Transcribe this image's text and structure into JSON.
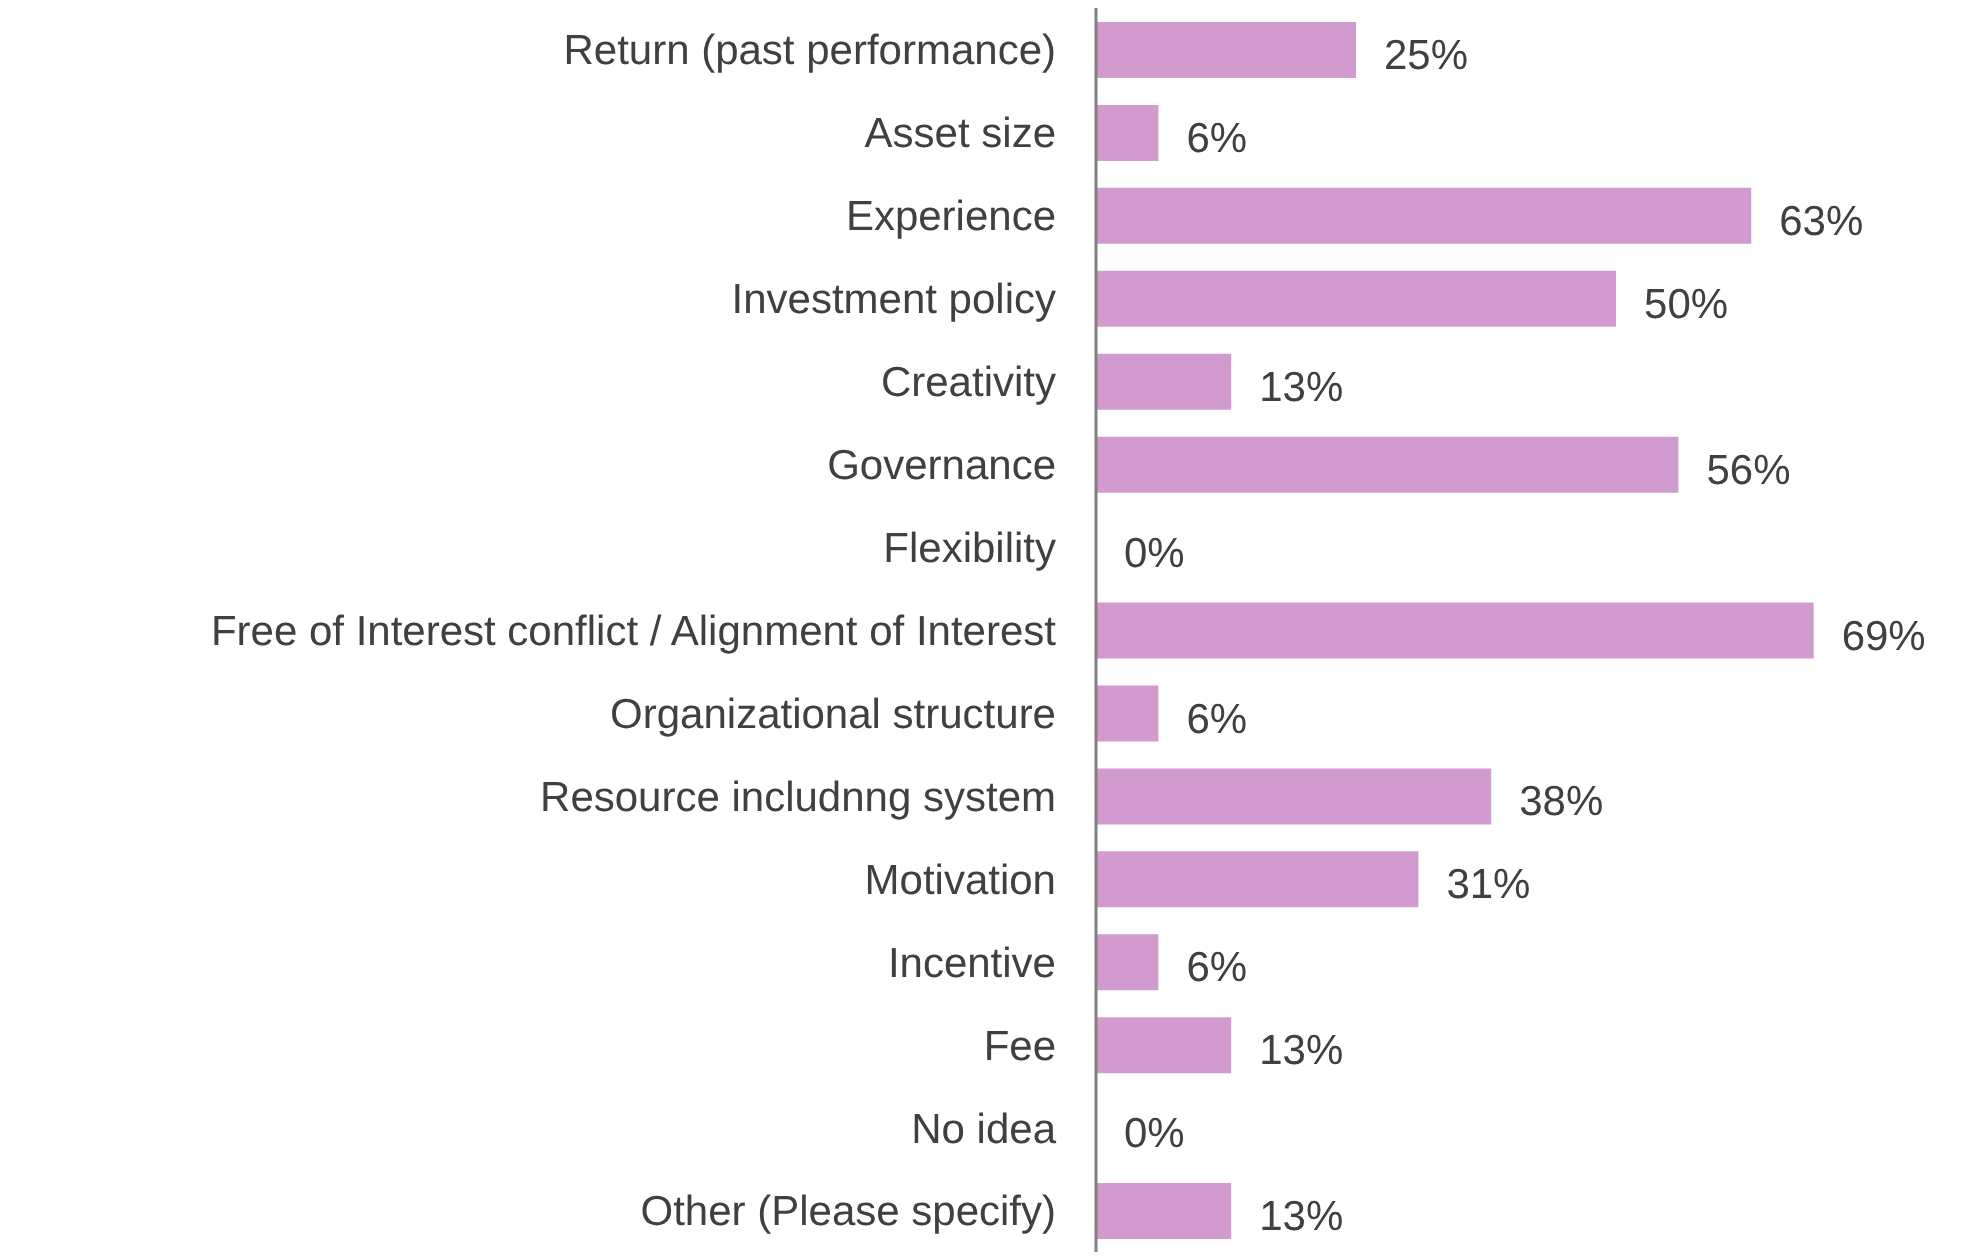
{
  "chart_data": {
    "type": "bar",
    "orientation": "horizontal",
    "categories": [
      "Return (past performance)",
      "Asset size",
      "Experience",
      "Investment policy",
      "Creativity",
      "Governance",
      "Flexibility",
      "Free of Interest conflict / Alignment of Interest",
      "Organizational structure",
      "Resource includnng system",
      "Motivation",
      "Incentive",
      "Fee",
      "No idea",
      "Other (Please specify)"
    ],
    "values": [
      25,
      6,
      63,
      50,
      13,
      56,
      0,
      69,
      6,
      38,
      31,
      6,
      13,
      0,
      13
    ],
    "value_labels": [
      "25%",
      "6%",
      "63%",
      "50%",
      "13%",
      "56%",
      "0%",
      "69%",
      "6%",
      "38%",
      "31%",
      "6%",
      "13%",
      "0%",
      "13%"
    ],
    "color": "#d29bd0",
    "grid": false,
    "legend": false
  }
}
